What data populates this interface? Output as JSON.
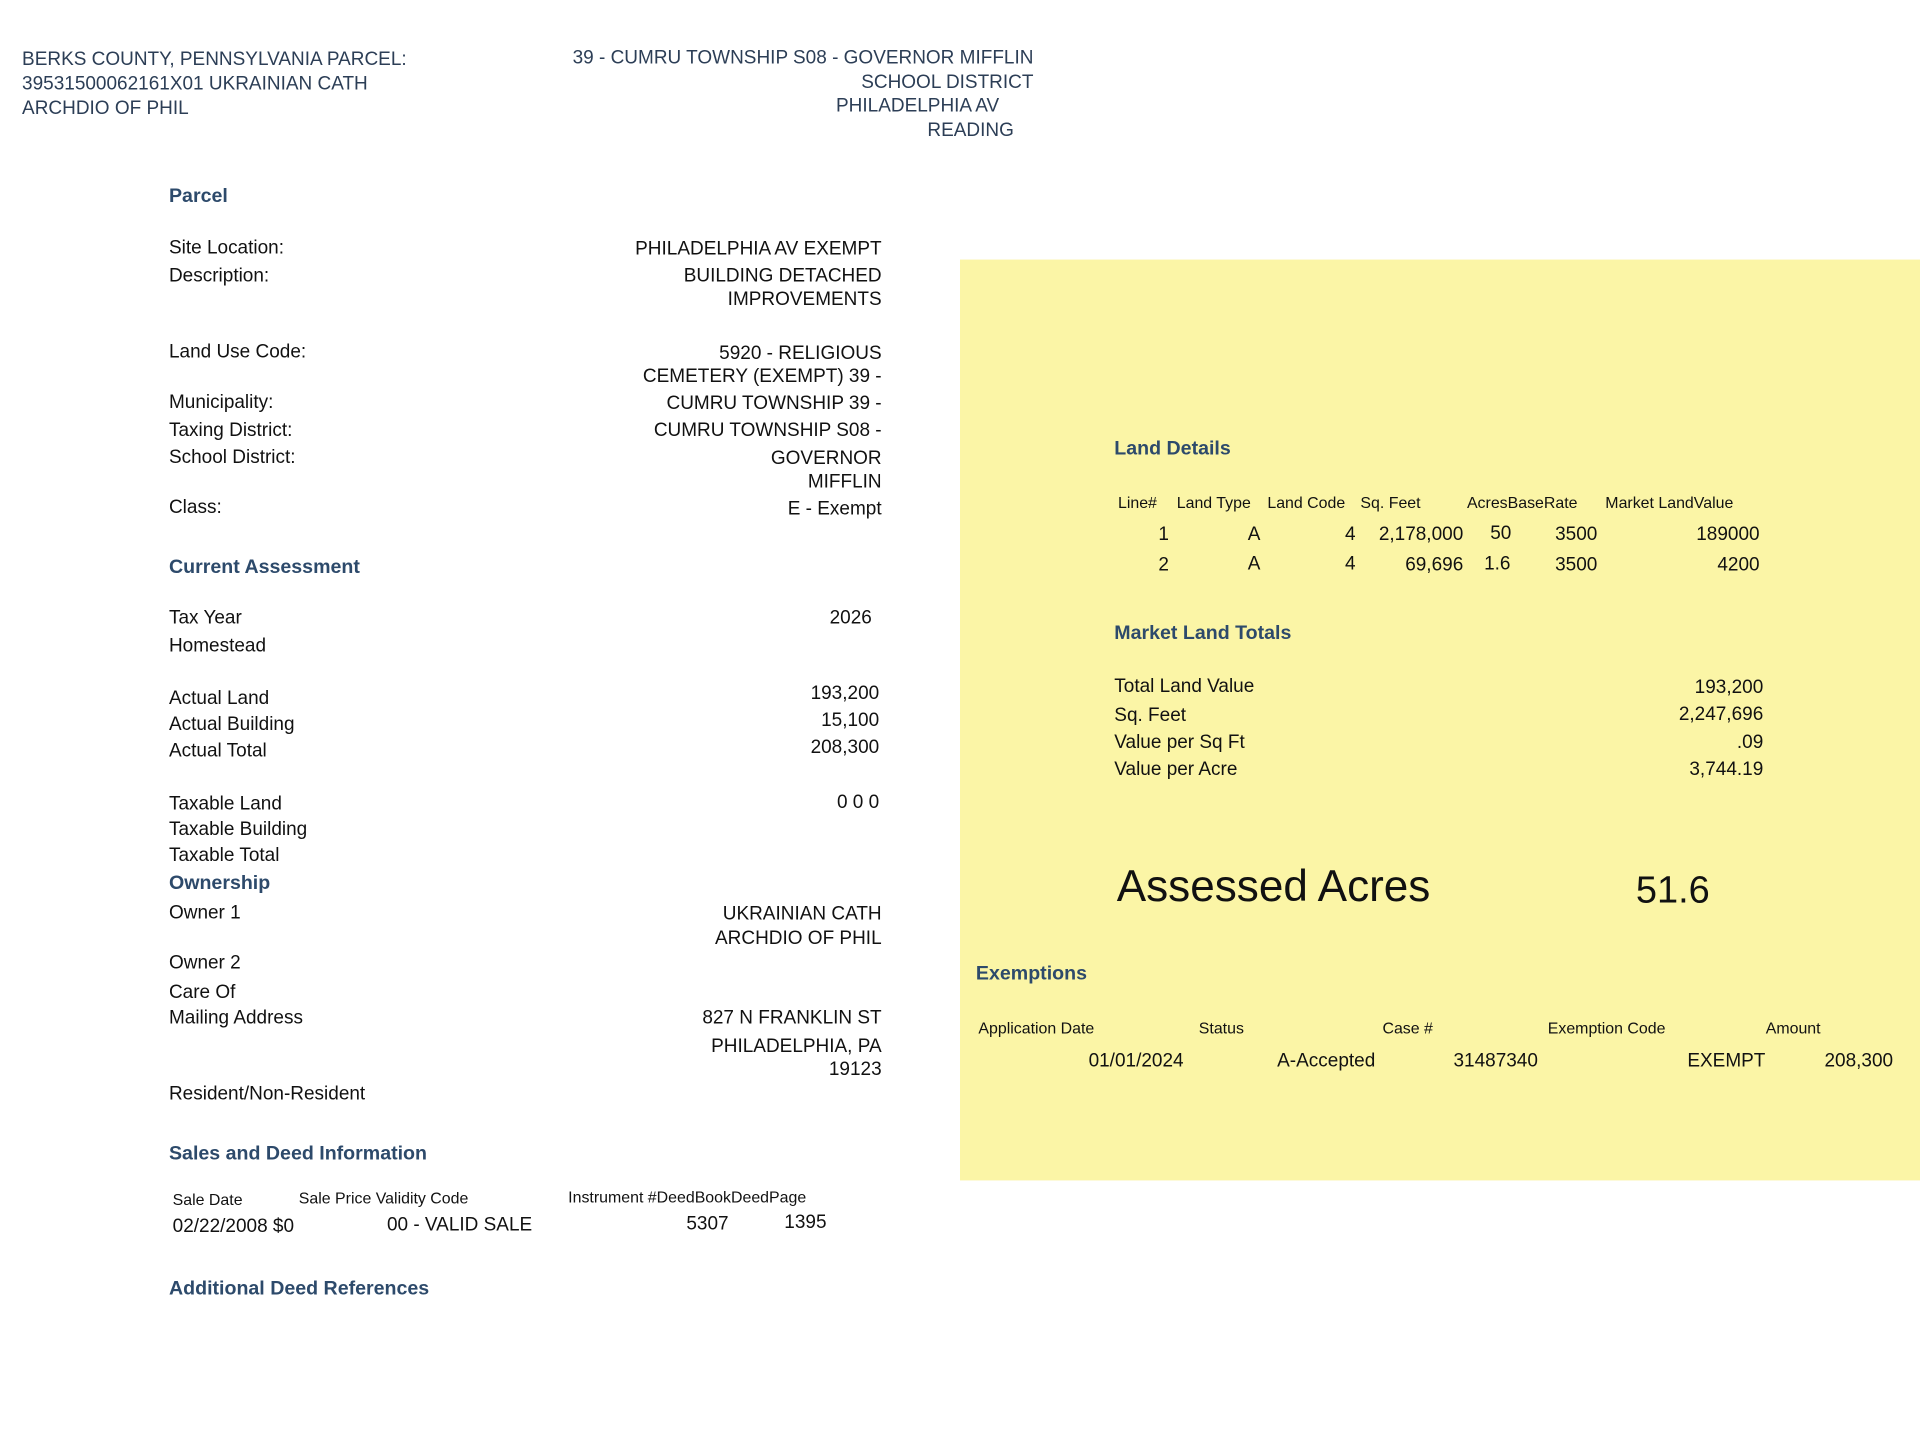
{
  "header": {
    "left": [
      "BERKS COUNTY, PENNSYLVANIA PARCEL:",
      "39531500062161X01 UKRAINIAN CATH",
      "ARCHDIO OF PHIL"
    ],
    "right": [
      "39 - CUMRU TOWNSHIP S08 - GOVERNOR MIFFLIN",
      "SCHOOL DISTRICT",
      "PHILADELPHIA AV",
      "READING"
    ]
  },
  "parcel": {
    "title": "Parcel",
    "labels": [
      "Site Location:",
      "Description:",
      "Land Use Code:",
      "Municipality:",
      "Taxing District:",
      "School District:",
      "Class:"
    ],
    "values": [
      "PHILADELPHIA AV EXEMPT",
      "BUILDING DETACHED",
      "IMPROVEMENTS",
      "5920 - RELIGIOUS",
      "CEMETERY (EXEMPT) 39 -",
      "CUMRU TOWNSHIP 39 -",
      "CUMRU TOWNSHIP S08 -",
      "GOVERNOR",
      "MIFFLIN",
      "E - Exempt"
    ]
  },
  "assessment": {
    "title": "Current Assessment",
    "labels": [
      "Tax Year",
      "Homestead",
      "Actual Land",
      "Actual Building",
      "Actual Total",
      "Taxable Land",
      "Taxable Building",
      "Taxable Total"
    ],
    "values": [
      "2026",
      "193,200",
      "15,100",
      "208,300",
      "0 0 0"
    ]
  },
  "ownership": {
    "title": "Ownership",
    "labels": [
      "Owner 1",
      "Owner 2",
      "Care Of",
      "Mailing Address",
      "Resident/Non-Resident"
    ],
    "values": [
      "UKRAINIAN CATH",
      "ARCHDIO OF PHIL",
      "827 N FRANKLIN ST",
      "PHILADELPHIA, PA",
      "19123"
    ]
  },
  "sales": {
    "title": "Sales and Deed Information",
    "headers": [
      "Sale Date",
      "Sale Price Validity Code",
      "Instrument #DeedBookDeedPage"
    ],
    "row": [
      "02/22/2008 $0",
      "00 - VALID SALE",
      "5307",
      "1395"
    ]
  },
  "additional": {
    "title": "Additional Deed References"
  },
  "land_details": {
    "title": "Land Details",
    "headers": [
      "Line#",
      "Land Type",
      "Land Code",
      "Sq. Feet",
      "AcresBaseRate",
      "Market LandValue"
    ],
    "rows": [
      [
        "1",
        "A",
        "4",
        "2,178,000",
        "50",
        "3500",
        "189000"
      ],
      [
        "2",
        "A",
        "4",
        "69,696",
        "1.6",
        "3500",
        "4200"
      ]
    ]
  },
  "totals": {
    "title": "Market Land Totals",
    "labels": [
      "Total Land Value",
      "Sq. Feet",
      "Value per Sq Ft",
      "Value per Acre"
    ],
    "values": [
      "193,200",
      "2,247,696",
      ".09",
      "3,744.19"
    ]
  },
  "assessed_acres": {
    "label": "Assessed Acres",
    "value": "51.6"
  },
  "exemptions": {
    "title": "Exemptions",
    "headers": [
      "Application Date",
      "Status",
      "Case #",
      "Exemption Code",
      "Amount"
    ],
    "row": [
      "01/01/2024",
      "A-Accepted",
      "31487340",
      "EXEMPT",
      "208,300"
    ]
  },
  "colors": {
    "panel": "#fbf5a6",
    "heading": "#2d4a6b"
  }
}
